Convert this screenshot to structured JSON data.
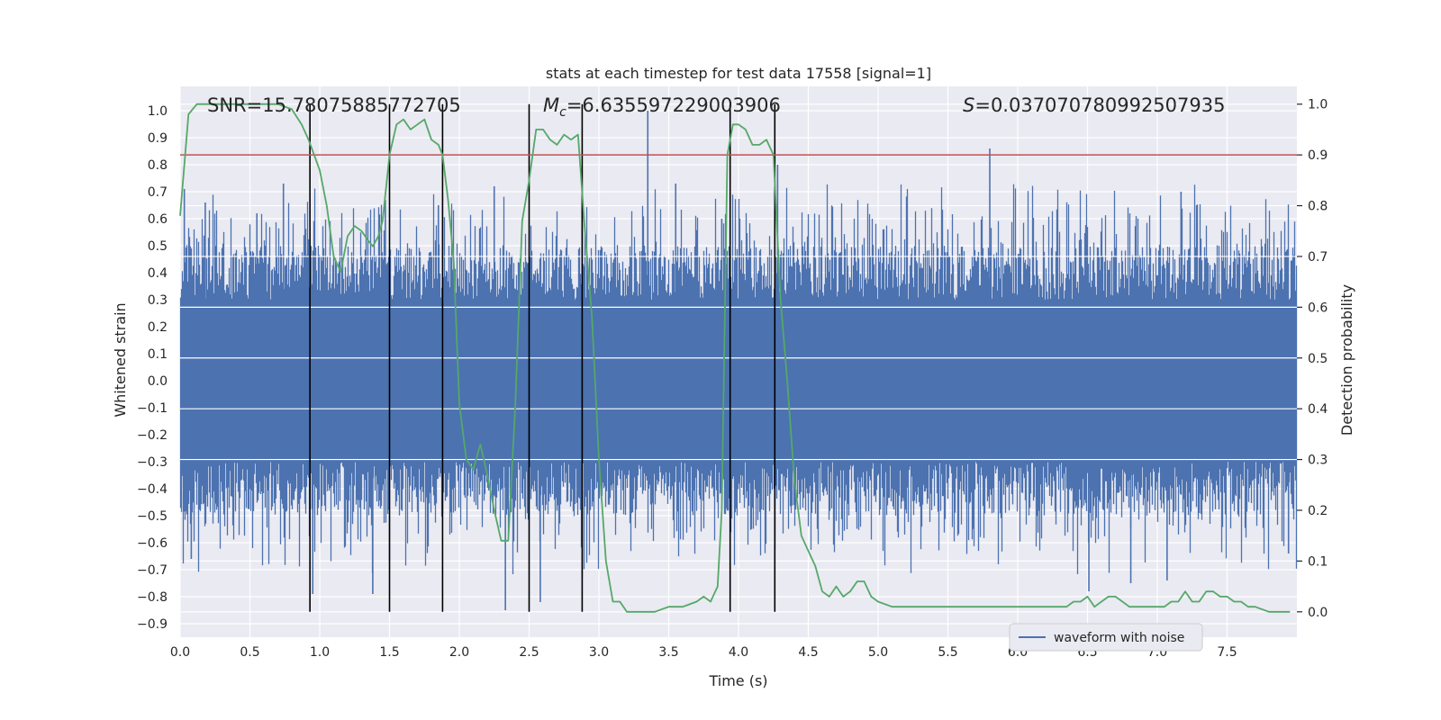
{
  "chart_data": {
    "type": "line",
    "title": "stats at each timestep for test data 17558 [signal=1]",
    "xlabel": "Time (s)",
    "ylabel_left": "Whitened strain",
    "ylabel_right": "Detection probability",
    "xlim": [
      0.0,
      8.0
    ],
    "ylim_left": [
      -0.95,
      1.09
    ],
    "ylim_right": [
      -0.05,
      1.035
    ],
    "x_ticks": [
      "0.0",
      "0.5",
      "1.0",
      "1.5",
      "2.0",
      "2.5",
      "3.0",
      "3.5",
      "4.0",
      "4.5",
      "5.0",
      "5.5",
      "6.0",
      "6.5",
      "7.0",
      "7.5"
    ],
    "y_ticks_left": [
      "1.0",
      "0.9",
      "0.8",
      "0.7",
      "0.6",
      "0.5",
      "0.4",
      "0.3",
      "0.2",
      "0.1",
      "0.0",
      "-0.1",
      "-0.2",
      "-0.3",
      "-0.4",
      "-0.5",
      "-0.6",
      "-0.7",
      "-0.8",
      "-0.9"
    ],
    "y_ticks_right": [
      "1.0",
      "0.9",
      "0.8",
      "0.7",
      "0.6",
      "0.5",
      "0.4",
      "0.3",
      "0.2",
      "0.1",
      "0.0"
    ],
    "annotations": {
      "snr": "SNR=15.78075885772705",
      "mc_symbol": "M",
      "mc_sub": "c",
      "mc_value": "=6.635597229003906",
      "s_symbol": "S",
      "s_value": "=0.037070780992507935"
    },
    "legend": {
      "entries": [
        "waveform with noise"
      ],
      "placement": "lower-right"
    },
    "grid": true,
    "threshold_line": {
      "axis": "right",
      "value": 0.9,
      "color": "#c44e52"
    },
    "vertical_lines": [
      0.93,
      1.5,
      1.88,
      2.5,
      2.88,
      3.94,
      4.26
    ],
    "vertical_line_range": [
      0.0,
      1.0
    ],
    "waveform": {
      "name": "waveform with noise",
      "color": "#4c72b0",
      "core_amplitude": 0.3,
      "spikes": [
        {
          "x": 0.03,
          "y": 0.71
        },
        {
          "x": 0.08,
          "y": -0.66
        },
        {
          "x": 0.18,
          "y": 0.66
        },
        {
          "x": 0.55,
          "y": 0.62
        },
        {
          "x": 0.74,
          "y": 0.73
        },
        {
          "x": 0.95,
          "y": -0.79
        },
        {
          "x": 1.38,
          "y": -0.79
        },
        {
          "x": 1.47,
          "y": 0.67
        },
        {
          "x": 1.85,
          "y": 0.65
        },
        {
          "x": 2.25,
          "y": 0.72
        },
        {
          "x": 2.33,
          "y": -0.85
        },
        {
          "x": 2.58,
          "y": -0.82
        },
        {
          "x": 2.88,
          "y": 0.66
        },
        {
          "x": 3.35,
          "y": 1.0
        },
        {
          "x": 3.55,
          "y": 0.73
        },
        {
          "x": 3.88,
          "y": 0.6
        },
        {
          "x": 4.28,
          "y": 0.8
        },
        {
          "x": 5.8,
          "y": 0.86
        },
        {
          "x": 6.51,
          "y": -0.78
        },
        {
          "x": 6.81,
          "y": -0.75
        },
        {
          "x": 7.07,
          "y": -0.74
        },
        {
          "x": 7.17,
          "y": 0.7
        },
        {
          "x": 7.94,
          "y": -0.64
        }
      ]
    },
    "probability": {
      "name": "detection probability",
      "color": "#55a868",
      "x": [
        0.0,
        0.06,
        0.12,
        0.2,
        0.3,
        0.5,
        0.7,
        0.8,
        0.87,
        0.92,
        0.96,
        1.0,
        1.05,
        1.1,
        1.15,
        1.2,
        1.25,
        1.3,
        1.35,
        1.38,
        1.42,
        1.45,
        1.5,
        1.55,
        1.6,
        1.65,
        1.7,
        1.75,
        1.8,
        1.85,
        1.88,
        1.92,
        1.96,
        2.0,
        2.05,
        2.1,
        2.15,
        2.2,
        2.25,
        2.3,
        2.35,
        2.4,
        2.45,
        2.5,
        2.55,
        2.6,
        2.65,
        2.7,
        2.75,
        2.8,
        2.85,
        2.9,
        2.95,
        3.0,
        3.05,
        3.1,
        3.15,
        3.2,
        3.3,
        3.4,
        3.5,
        3.6,
        3.7,
        3.75,
        3.8,
        3.85,
        3.88,
        3.92,
        3.96,
        4.0,
        4.05,
        4.1,
        4.15,
        4.2,
        4.25,
        4.3,
        4.35,
        4.4,
        4.45,
        4.5,
        4.55,
        4.6,
        4.65,
        4.7,
        4.75,
        4.8,
        4.85,
        4.9,
        4.95,
        5.0,
        5.1,
        5.2,
        5.4,
        5.6,
        5.8,
        6.0,
        6.2,
        6.3,
        6.35,
        6.4,
        6.45,
        6.5,
        6.55,
        6.6,
        6.65,
        6.7,
        6.75,
        6.8,
        6.9,
        7.0,
        7.05,
        7.1,
        7.15,
        7.2,
        7.25,
        7.3,
        7.35,
        7.4,
        7.45,
        7.5,
        7.55,
        7.6,
        7.65,
        7.7,
        7.8,
        7.95
      ],
      "y": [
        0.78,
        0.98,
        1.0,
        1.0,
        1.0,
        1.0,
        1.0,
        0.99,
        0.96,
        0.93,
        0.9,
        0.87,
        0.8,
        0.7,
        0.67,
        0.74,
        0.76,
        0.75,
        0.73,
        0.72,
        0.74,
        0.77,
        0.9,
        0.96,
        0.97,
        0.95,
        0.96,
        0.97,
        0.93,
        0.92,
        0.9,
        0.81,
        0.69,
        0.41,
        0.3,
        0.28,
        0.33,
        0.27,
        0.2,
        0.14,
        0.14,
        0.4,
        0.77,
        0.85,
        0.95,
        0.95,
        0.93,
        0.92,
        0.94,
        0.93,
        0.94,
        0.75,
        0.58,
        0.3,
        0.1,
        0.02,
        0.02,
        0.0,
        0.0,
        0.0,
        0.01,
        0.01,
        0.02,
        0.03,
        0.02,
        0.05,
        0.2,
        0.9,
        0.96,
        0.96,
        0.95,
        0.92,
        0.92,
        0.93,
        0.9,
        0.62,
        0.45,
        0.26,
        0.15,
        0.12,
        0.09,
        0.04,
        0.03,
        0.05,
        0.03,
        0.04,
        0.06,
        0.06,
        0.03,
        0.02,
        0.01,
        0.01,
        0.01,
        0.01,
        0.01,
        0.01,
        0.01,
        0.01,
        0.01,
        0.02,
        0.02,
        0.03,
        0.01,
        0.02,
        0.03,
        0.03,
        0.02,
        0.01,
        0.01,
        0.01,
        0.01,
        0.02,
        0.02,
        0.04,
        0.02,
        0.02,
        0.04,
        0.04,
        0.03,
        0.03,
        0.02,
        0.02,
        0.01,
        0.01,
        0.0,
        0.0
      ]
    }
  }
}
